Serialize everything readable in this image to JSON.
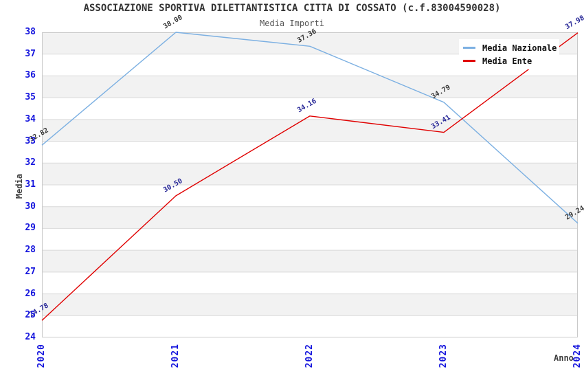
{
  "header": {
    "title": "ASSOCIAZIONE SPORTIVA DILETTANTISTICA CITTA DI COSSATO (c.f.83004590028)",
    "subtitle": "Media Importi"
  },
  "axes": {
    "y_label": "Media",
    "x_label": "Anno"
  },
  "legend": {
    "items": [
      {
        "label": "Media Nazionale"
      },
      {
        "label": "Media Ente"
      }
    ]
  },
  "chart_data": {
    "type": "line",
    "title": "ASSOCIAZIONE SPORTIVA DILETTANTISTICA CITTA DI COSSATO (c.f.83004590028)",
    "subtitle": "Media Importi",
    "xlabel": "Anno",
    "ylabel": "Media",
    "categories": [
      "2020",
      "2021",
      "2022",
      "2023",
      "2024"
    ],
    "series": [
      {
        "name": "Media Nazionale",
        "color": "#7cb0e2",
        "label_color": "#3a3a3a",
        "values": [
          32.82,
          38.0,
          37.36,
          34.79,
          29.24
        ]
      },
      {
        "name": "Media Ente",
        "color": "#e00000",
        "label_color": "#2b2b99",
        "values": [
          24.78,
          30.5,
          34.16,
          33.41,
          37.98
        ]
      }
    ],
    "ylim": [
      24,
      38
    ],
    "ytick_step": 1,
    "grid": "horizontal",
    "band_fill": "#f2f2f2",
    "band_alt_fill": "#ffffff",
    "gridline_color": "#d9d9d9",
    "border_color": "#c9c9c9",
    "tick_label_color": "#1414dd",
    "legend_position": "top-right",
    "point_label_rotation": -30
  }
}
